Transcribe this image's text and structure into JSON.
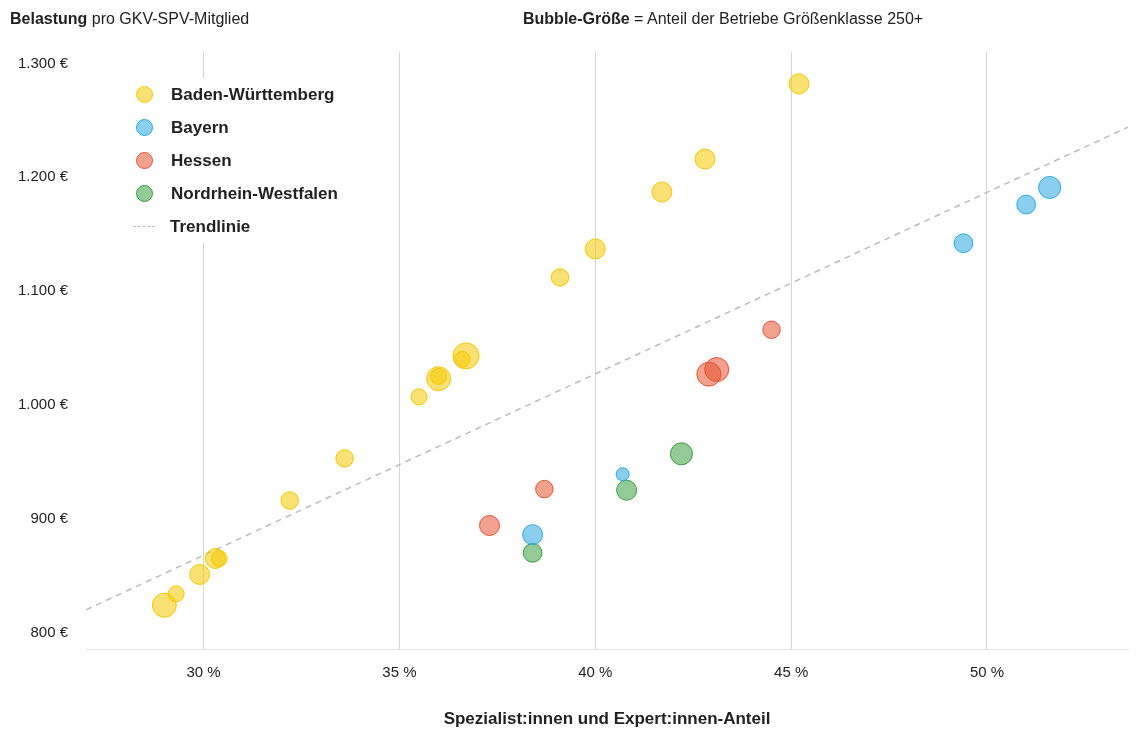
{
  "chart_data": {
    "type": "bubble",
    "ylabel": "Belastung pro GKV-SPV-Mitglied",
    "xlabel": "Spezialist:innen und Expert:innen-Anteil",
    "annotations": [
      "Bubble-Größe = Anteil der Betriebe Größenklasse 250+"
    ],
    "xlim": [
      27,
      53.6
    ],
    "ylim": [
      785,
      1310
    ],
    "xticks": [
      {
        "value": 30,
        "label": "30 %"
      },
      {
        "value": 35,
        "label": "35 %"
      },
      {
        "value": 40,
        "label": "40 %"
      },
      {
        "value": 45,
        "label": "45 %"
      },
      {
        "value": 50,
        "label": "50 %"
      }
    ],
    "yticks": [
      {
        "value": 800,
        "label": "800 €"
      },
      {
        "value": 900,
        "label": "900 €"
      },
      {
        "value": 1000,
        "label": "1.000 €"
      },
      {
        "value": 1100,
        "label": "1.100 €"
      },
      {
        "value": 1200,
        "label": "1.200 €"
      },
      {
        "value": 1300,
        "label": "1.300 €"
      }
    ],
    "grid": "x",
    "legend": "top left",
    "series": [
      {
        "name": "Baden-Württemberg",
        "color": "#f5c800",
        "x": [
          29.0,
          29.3,
          29.9,
          30.3,
          30.4,
          32.2,
          33.6,
          35.5,
          36.0,
          36.0,
          36.6,
          36.7,
          39.1,
          40.0,
          41.7,
          42.8,
          45.2
        ],
        "values": [
          824,
          834,
          851,
          865,
          865,
          916,
          953,
          1007,
          1023,
          1025,
          1040,
          1043,
          1112,
          1137,
          1187,
          1216,
          1282
        ],
        "sizes": [
          0.85,
          0.38,
          0.59,
          0.59,
          0.38,
          0.45,
          0.45,
          0.38,
          0.85,
          0.38,
          0.38,
          1,
          0.45,
          0.59,
          0.59,
          0.59,
          0.59
        ]
      },
      {
        "name": "Bayern",
        "color": "#29a9e0",
        "x": [
          38.4,
          40.7,
          49.4,
          51.0,
          51.6
        ],
        "values": [
          886,
          939,
          1142,
          1176,
          1191
        ],
        "sizes": [
          0.59,
          0.25,
          0.52,
          0.52,
          0.72
        ]
      },
      {
        "name": "Hessen",
        "color": "#e5532f",
        "x": [
          37.3,
          38.7,
          42.9,
          43.1,
          44.5
        ],
        "values": [
          894,
          926,
          1027,
          1031,
          1066
        ],
        "sizes": [
          0.59,
          0.45,
          0.85,
          0.85,
          0.45
        ]
      },
      {
        "name": "Nordrhein-Westfalen",
        "color": "#3a9e3f",
        "x": [
          38.4,
          40.8,
          42.2
        ],
        "values": [
          870,
          925,
          957
        ],
        "sizes": [
          0.52,
          0.59,
          0.72
        ]
      },
      {
        "name": "Trendlinie",
        "type": "line",
        "color": "#bbbbbb",
        "line_style": "dashed",
        "marker": "none",
        "x": [
          27,
          53.6
        ],
        "values": [
          820,
          1244
        ]
      }
    ]
  }
}
